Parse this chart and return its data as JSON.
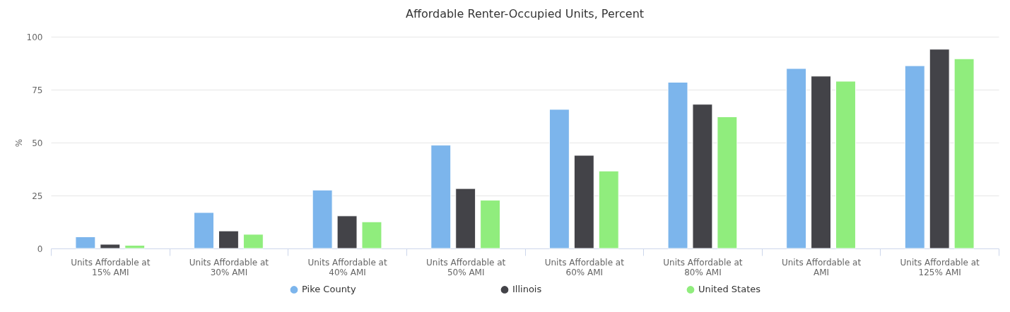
{
  "chart_data": {
    "type": "bar",
    "title": "Affordable Renter-Occupied Units, Percent",
    "ylabel": "%",
    "categories": [
      "Units Affordable at 15% AMI",
      "Units Affordable at 30% AMI",
      "Units Affordable at 40% AMI",
      "Units Affordable at 50% AMI",
      "Units Affordable at 60% AMI",
      "Units Affordable at 80% AMI",
      "Units Affordable at AMI",
      "Units Affordable at 125% AMI"
    ],
    "series": [
      {
        "name": "Pike County",
        "color": "#7cb5ec",
        "values": [
          5.5,
          17,
          27.6,
          48.8,
          65.7,
          78.5,
          85,
          86.3
        ]
      },
      {
        "name": "Illinois",
        "color": "#434348",
        "values": [
          2,
          8.3,
          15.4,
          28.3,
          44,
          68.1,
          81.4,
          94.1
        ]
      },
      {
        "name": "United States",
        "color": "#90ed7d",
        "values": [
          1.5,
          6.7,
          12.6,
          22.8,
          36.6,
          62.2,
          79,
          89.6
        ]
      }
    ],
    "ylim": [
      0,
      100
    ],
    "yticks": [
      0,
      25,
      50,
      75,
      100
    ],
    "grid": "y",
    "legend": "bottom"
  }
}
